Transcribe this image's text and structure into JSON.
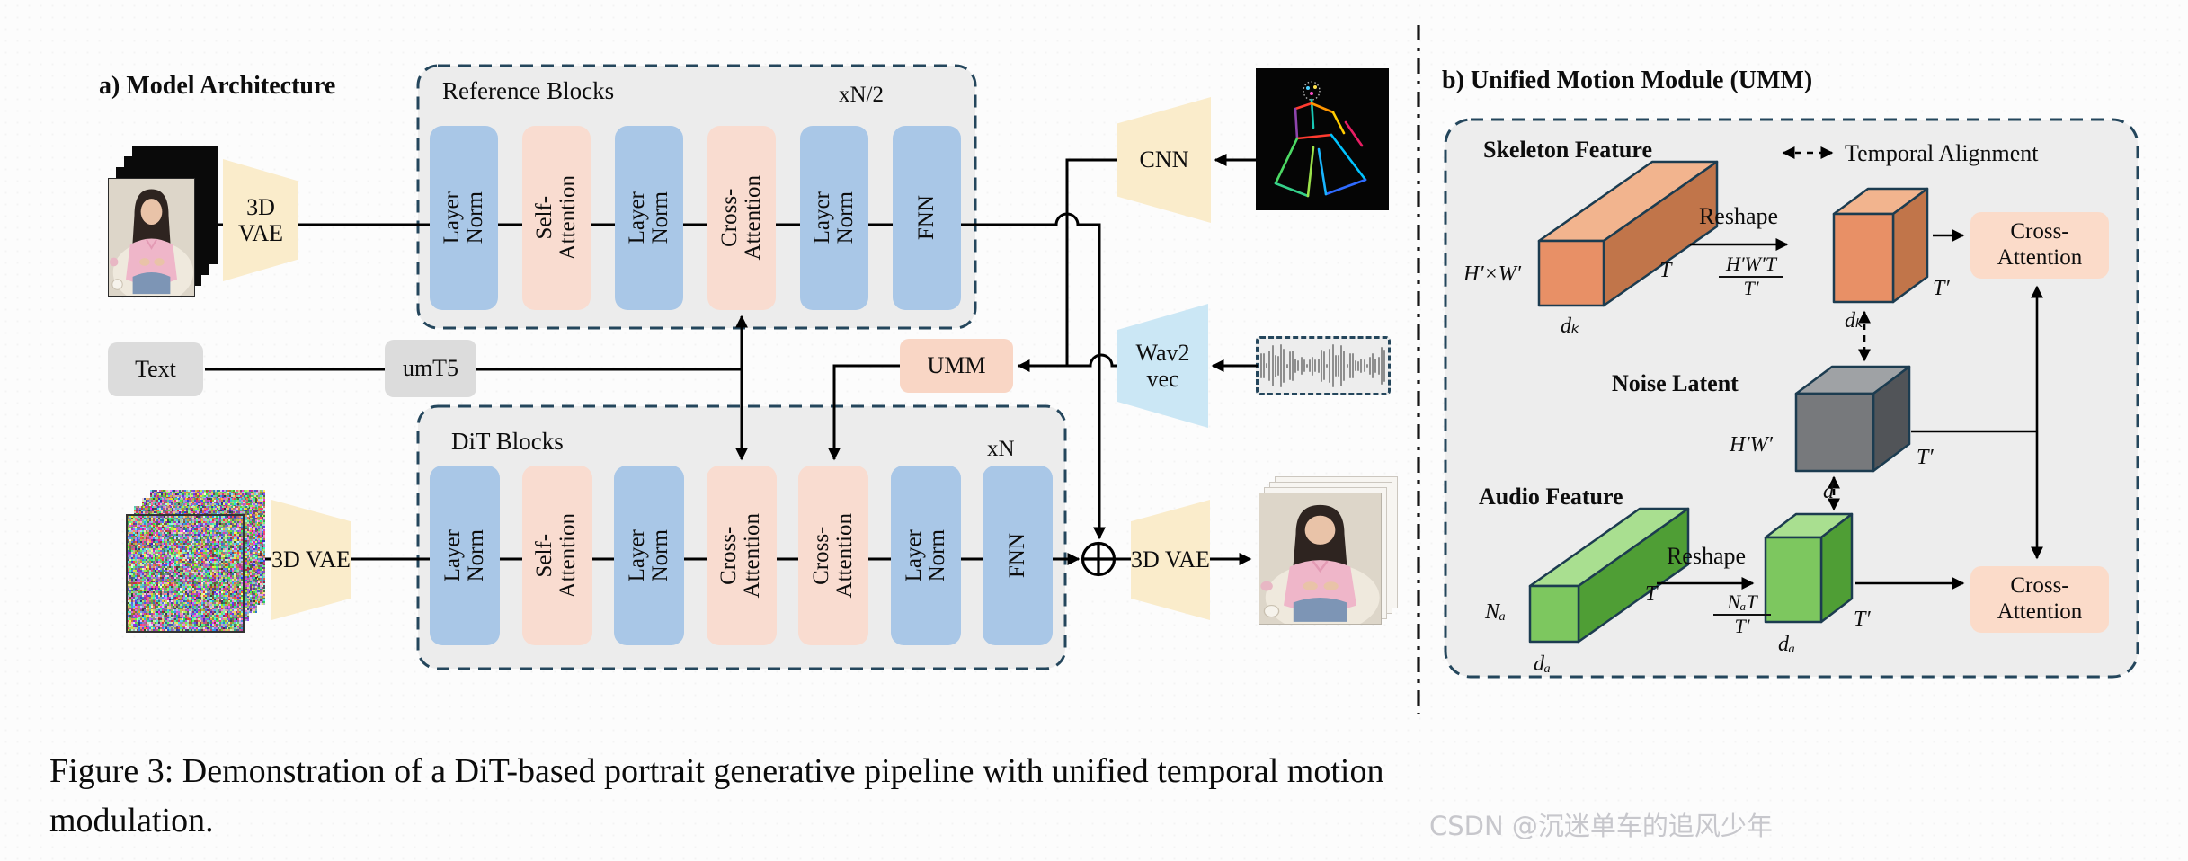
{
  "panel_a": {
    "title": "a) Model Architecture",
    "vae_label": "3D VAE",
    "reference_blocks": {
      "title": "Reference Blocks",
      "multiplier": "xN/2",
      "blocks": [
        {
          "label": "Layer Norm",
          "color": "blue"
        },
        {
          "label": "Self-Attention",
          "color": "pink"
        },
        {
          "label": "Layer Norm",
          "color": "blue"
        },
        {
          "label": "Cross-\nAttention",
          "color": "pink"
        },
        {
          "label": "Layer Norm",
          "color": "blue"
        },
        {
          "label": "FNN",
          "color": "blue"
        }
      ]
    },
    "dit_blocks": {
      "title": "DiT Blocks",
      "multiplier": "xN",
      "blocks": [
        {
          "label": "Layer Norm",
          "color": "blue"
        },
        {
          "label": "Self-Attention",
          "color": "pink"
        },
        {
          "label": "Layer Norm",
          "color": "blue"
        },
        {
          "label": "Cross-\nAttention",
          "color": "pink"
        },
        {
          "label": "Cross-\nAttention",
          "color": "pink"
        },
        {
          "label": "Layer Norm",
          "color": "blue"
        },
        {
          "label": "FNN",
          "color": "blue"
        }
      ]
    },
    "text_label": "Text",
    "umt5_label": "umT5",
    "umm_label": "UMM",
    "cnn_label": "CNN",
    "wav2vec_label": "Wav2 vec"
  },
  "panel_b": {
    "title": "b) Unified Motion Module (UMM)",
    "temporal_alignment": "Temporal Alignment",
    "skeleton_feature": "Skeleton Feature",
    "noise_latent": "Noise Latent",
    "audio_feature": "Audio Feature",
    "reshape": "Reshape",
    "cross_attention": "Cross-Attention",
    "skeleton_dims": {
      "face": "H′×W′",
      "width": "dₖ",
      "depth": "T"
    },
    "skeleton_reshaped": {
      "frac_num": "H′W′T",
      "frac_den": "T′",
      "width": "dₖ",
      "depth": "T′"
    },
    "noise_dims": {
      "face": "H′W′",
      "width": "d",
      "depth": "T′"
    },
    "audio_dims": {
      "face": "Nₐ",
      "width": "dₐ",
      "depth": "T"
    },
    "audio_reshaped": {
      "frac_num": "NₐT",
      "frac_den": "T′",
      "width": "dₐ",
      "depth": "T′"
    }
  },
  "caption": {
    "line1": "Figure 3: Demonstration of a DiT-based portrait generative pipeline with unified temporal motion",
    "line2": "modulation."
  },
  "watermark": "CSDN @沉迷单车的追风少年",
  "colors": {
    "block_blue": "#a9c7e7",
    "block_pink": "#f9dcd0",
    "box_gray": "#ececec",
    "vae_yellow": "#faeccb",
    "wav_blue": "#cbe7f5",
    "umm_pink": "#f9d6c5",
    "dashed_border": "#24465c",
    "cuboid_orange": "#e89066",
    "cuboid_green": "#7dc75f",
    "cuboid_gray": "#77797c"
  }
}
